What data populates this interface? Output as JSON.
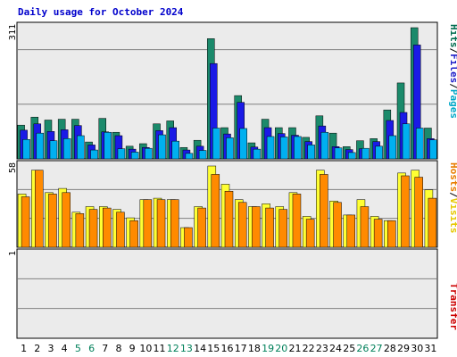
{
  "chart_data": {
    "type": "bar",
    "title": "Daily usage for October 2024",
    "categories": [
      "1",
      "2",
      "3",
      "4",
      "5",
      "6",
      "7",
      "8",
      "9",
      "10",
      "11",
      "12",
      "13",
      "14",
      "15",
      "16",
      "17",
      "18",
      "19",
      "20",
      "21",
      "22",
      "23",
      "24",
      "25",
      "26",
      "27",
      "28",
      "29",
      "30",
      "31"
    ],
    "weekend_days": [
      "5",
      "6",
      "12",
      "13",
      "19",
      "20",
      "26",
      "27"
    ],
    "panels": [
      {
        "id": "top",
        "ylim": [
          0,
          311
        ],
        "max_label": "311",
        "labels": [
          "Hits",
          "Files",
          "Pages"
        ],
        "label_colors": [
          "#006b4f",
          "#1c1cc8",
          "#00a8c8"
        ],
        "series": [
          {
            "name": "Hits",
            "color": "#1b8a6b",
            "values": [
              80,
              99,
              92,
              94,
              94,
              40,
              96,
              63,
              30,
              36,
              83,
              90,
              27,
              44,
              285,
              74,
              150,
              38,
              94,
              74,
              74,
              51,
              102,
              61,
              29,
              43,
              48,
              116,
              180,
              311,
              73
            ]
          },
          {
            "name": "Files",
            "color": "#1a1ae6",
            "values": [
              68,
              83,
              65,
              69,
              79,
              33,
              64,
              55,
              23,
              27,
              67,
              74,
              21,
              30,
              226,
              59,
              134,
              28,
              74,
              60,
              56,
              41,
              78,
              29,
              22,
              24,
              41,
              91,
              110,
              270,
              48
            ]
          },
          {
            "name": "Pages",
            "color": "#00b0f0",
            "values": [
              46,
              61,
              43,
              48,
              55,
              21,
              63,
              24,
              16,
              25,
              57,
              42,
              13,
              20,
              73,
              50,
              72,
              23,
              53,
              52,
              53,
              33,
              63,
              26,
              15,
              25,
              30,
              55,
              83,
              73,
              45
            ]
          }
        ]
      },
      {
        "id": "middle",
        "ylim": [
          0,
          58
        ],
        "max_label": "58",
        "labels": [
          "Hosts",
          "Visits"
        ],
        "label_colors": [
          "#e87d00",
          "#e6c800"
        ],
        "series": [
          {
            "name": "Visits",
            "color": "#ffff33",
            "values": [
              38,
              55,
              39,
              42,
              25,
              29,
              29,
              27,
              21,
              34,
              35,
              34,
              14,
              29,
              58,
              45,
              34,
              29,
              31,
              29,
              39,
              22,
              55,
              33,
              23,
              34,
              22,
              19,
              53,
              55,
              41
            ]
          },
          {
            "name": "Hosts",
            "color": "#ff8a00",
            "values": [
              36,
              55,
              38,
              39,
              24,
              27,
              28,
              25,
              19,
              34,
              34,
              34,
              14,
              28,
              52,
              40,
              32,
              29,
              28,
              27,
              38,
              20,
              52,
              32,
              23,
              29,
              20,
              19,
              51,
              50,
              35
            ]
          }
        ]
      },
      {
        "id": "bottom",
        "ylim": [
          0,
          1
        ],
        "max_label": "1",
        "labels": [
          "Transfer"
        ],
        "label_colors": [
          "#cc0000"
        ],
        "series": [
          {
            "name": "Transfer",
            "color": "#cc0000",
            "values": [
              0,
              0,
              0,
              0,
              0,
              0,
              0,
              0,
              0,
              0,
              0,
              0,
              0,
              0,
              0,
              0,
              0,
              0,
              0,
              0,
              0,
              0,
              0,
              0,
              0,
              0,
              0,
              0,
              0,
              0,
              0
            ]
          }
        ]
      }
    ]
  },
  "colors": {
    "title": "#0000cc",
    "weekday_label": "#000000",
    "weekend_label": "#00805a",
    "panel_border": "#000000",
    "gridline": "#808080",
    "chart_bg": "#ebebeb"
  }
}
